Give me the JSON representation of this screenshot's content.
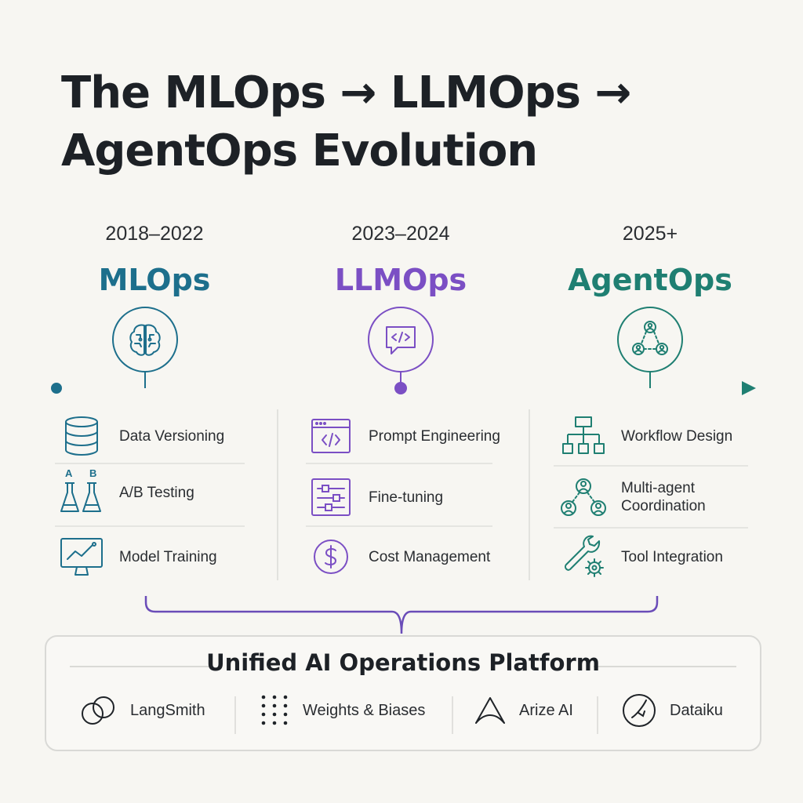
{
  "title": {
    "line1": "The MLOps → LLMOps →",
    "line2": "AgentOps Evolution"
  },
  "colors": {
    "mlops": "#1d6f8c",
    "llmops": "#7b4fc4",
    "agentops": "#1f7f72",
    "text": "#2a2d31"
  },
  "eras": [
    {
      "years": "2018–2022",
      "name": "MLOps",
      "icon": "brain-icon",
      "features": [
        {
          "label": "Data Versioning",
          "icon": "database-icon"
        },
        {
          "label": "A/B Testing",
          "icon": "flasks-icon",
          "icon_letters": [
            "A",
            "B"
          ]
        },
        {
          "label": "Model Training",
          "icon": "monitor-chart-icon"
        }
      ]
    },
    {
      "years": "2023–2024",
      "name": "LLMOps",
      "icon": "code-chat-icon",
      "features": [
        {
          "label": "Prompt Engineering",
          "icon": "code-window-icon"
        },
        {
          "label": "Fine-tuning",
          "icon": "sliders-icon"
        },
        {
          "label": "Cost Management",
          "icon": "dollar-icon"
        }
      ]
    },
    {
      "years": "2025+",
      "name": "AgentOps",
      "icon": "agents-network-icon",
      "features": [
        {
          "label": "Workflow Design",
          "icon": "workflow-icon"
        },
        {
          "label": "Multi-agent\nCoordination",
          "icon": "multi-agent-icon"
        },
        {
          "label": "Tool Integration",
          "icon": "wrench-gear-icon"
        }
      ]
    }
  ],
  "platform": {
    "title": "Unified AI Operations Platform",
    "tools": [
      {
        "label": "LangSmith",
        "icon": "chain-link-icon"
      },
      {
        "label": "Weights & Biases",
        "icon": "dot-grid-icon"
      },
      {
        "label": "Arize AI",
        "icon": "arize-a-icon"
      },
      {
        "label": "Dataiku",
        "icon": "dataiku-bird-icon"
      }
    ]
  }
}
